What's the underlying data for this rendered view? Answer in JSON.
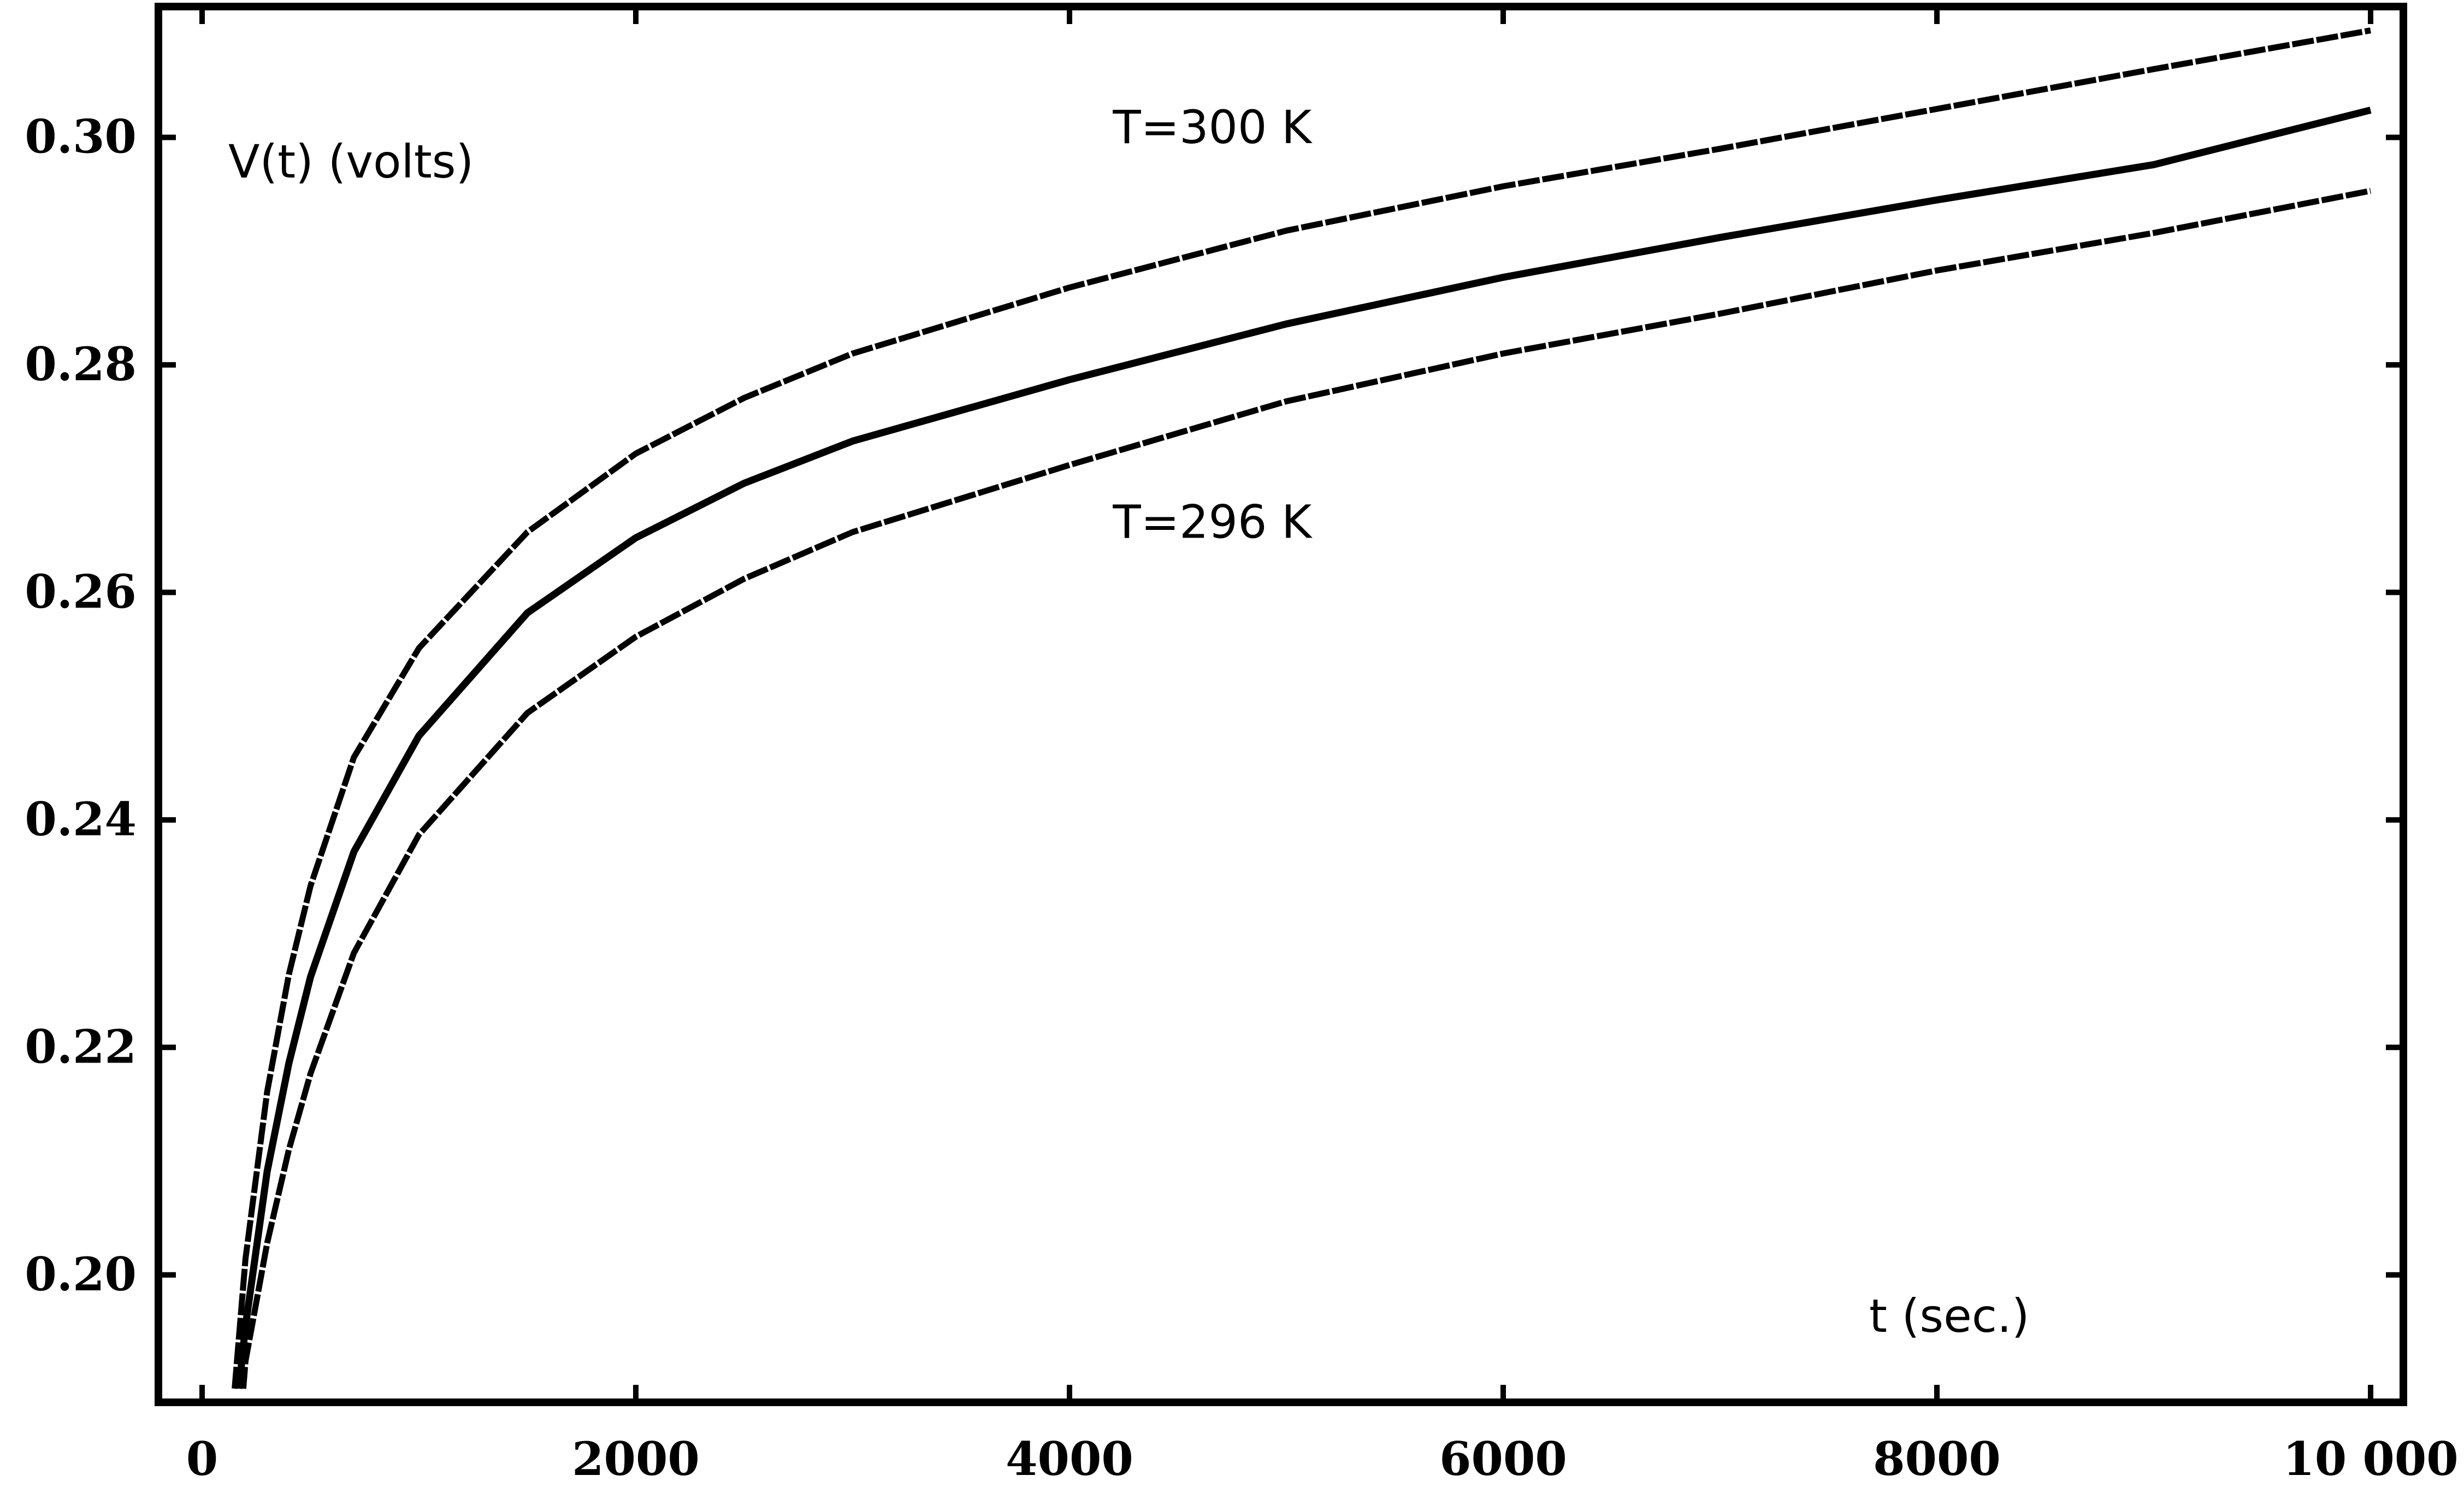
{
  "chart_data": {
    "type": "line",
    "xlabel": "t (sec.)",
    "ylabel": "V(t) (volts)",
    "xlim": [
      0,
      10000
    ],
    "ylim": [
      0.19,
      0.3115
    ],
    "grid": false,
    "xticks": [
      {
        "value": 0,
        "label": "0"
      },
      {
        "value": 2000,
        "label": "2000"
      },
      {
        "value": 4000,
        "label": "4000"
      },
      {
        "value": 6000,
        "label": "6000"
      },
      {
        "value": 8000,
        "label": "8000"
      },
      {
        "value": 10000,
        "label": "10 000"
      }
    ],
    "yticks": [
      {
        "value": 0.2,
        "label": "0.20"
      },
      {
        "value": 0.22,
        "label": "0.22"
      },
      {
        "value": 0.24,
        "label": "0.24"
      },
      {
        "value": 0.26,
        "label": "0.26"
      },
      {
        "value": 0.28,
        "label": "0.28"
      },
      {
        "value": 0.3,
        "label": "0.30"
      }
    ],
    "annotations": [
      {
        "text": "T=300 K",
        "x": 4200,
        "y": 0.2995
      },
      {
        "text": "T=296 K",
        "x": 4200,
        "y": 0.2648
      }
    ],
    "series": [
      {
        "style": "dashed",
        "x": [
          150,
          200,
          300,
          400,
          500,
          700,
          1000,
          1500,
          2000,
          2500,
          3000,
          4000,
          5000,
          6000,
          7000,
          8000,
          9000,
          10000
        ],
        "y": [
          0.19,
          0.2014,
          0.2161,
          0.2264,
          0.2342,
          0.2455,
          0.2551,
          0.2653,
          0.2722,
          0.2771,
          0.281,
          0.2868,
          0.2918,
          0.2957,
          0.299,
          0.3025,
          0.306,
          0.3094
        ]
      },
      {
        "style": "solid",
        "x": [
          170,
          200,
          300,
          400,
          500,
          700,
          1000,
          1500,
          2000,
          2500,
          3000,
          4000,
          5000,
          6000,
          7000,
          8000,
          9000,
          10000
        ],
        "y": [
          0.19,
          0.1955,
          0.2091,
          0.2186,
          0.2262,
          0.2372,
          0.2474,
          0.2582,
          0.2648,
          0.2696,
          0.2733,
          0.2787,
          0.2836,
          0.2877,
          0.2912,
          0.2945,
          0.2976,
          0.3024
        ]
      },
      {
        "style": "dashed",
        "x": [
          190,
          200,
          300,
          400,
          500,
          700,
          1000,
          1500,
          2000,
          2500,
          3000,
          4000,
          5000,
          6000,
          7000,
          8000,
          9000,
          10000
        ],
        "y": [
          0.19,
          0.1924,
          0.2028,
          0.211,
          0.2177,
          0.2283,
          0.2387,
          0.2494,
          0.2561,
          0.2612,
          0.2653,
          0.2712,
          0.2768,
          0.281,
          0.2845,
          0.2883,
          0.2916,
          0.2953
        ]
      }
    ]
  }
}
